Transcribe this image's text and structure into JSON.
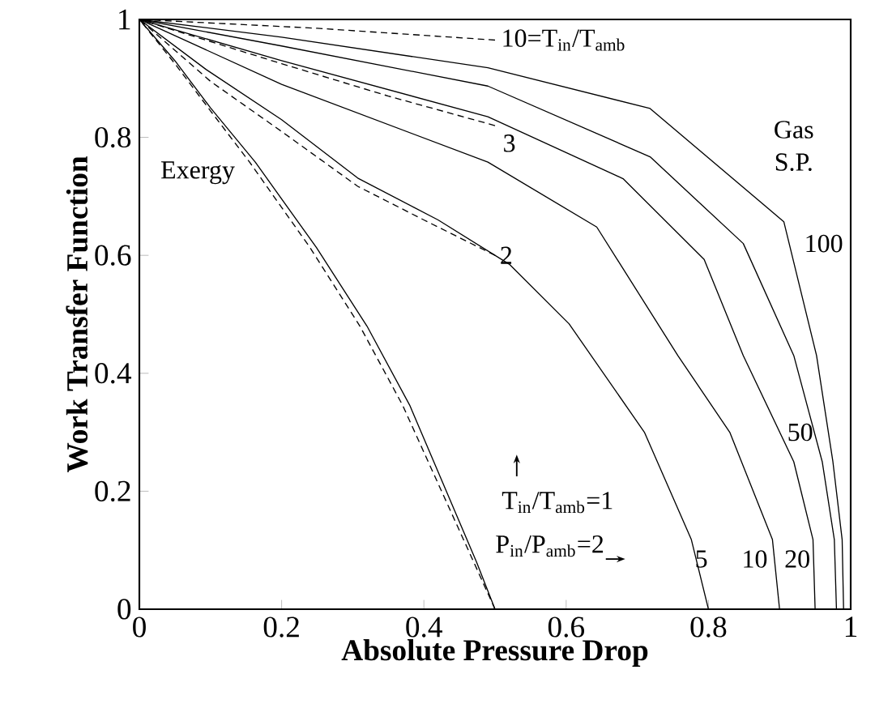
{
  "chart_data": {
    "type": "line",
    "xlabel": "Absolute Pressure Drop",
    "ylabel": "Work Transfer Function",
    "xlim": [
      0,
      1
    ],
    "ylim": [
      0,
      1
    ],
    "xticks": [
      0,
      0.2,
      0.4,
      0.6,
      0.8,
      1
    ],
    "yticks": [
      0,
      0.2,
      0.4,
      0.6,
      0.8,
      1
    ],
    "grid": false,
    "marker": "none",
    "series": [
      {
        "color": "#000000",
        "line_style": "solid",
        "x": [
          0,
          0.05,
          0.1,
          0.163,
          0.249,
          0.32,
          0.38,
          0.474,
          0.5
        ],
        "values": [
          1,
          0.93,
          0.85,
          0.758,
          0.613,
          0.48,
          0.346,
          0.08,
          0
        ]
      },
      {
        "color": "#000000",
        "line_style": "dashed",
        "x": [
          0,
          0.05,
          0.1,
          0.155,
          0.24,
          0.31,
          0.37,
          0.47,
          0.5
        ],
        "values": [
          1,
          0.925,
          0.845,
          0.758,
          0.613,
          0.48,
          0.346,
          0.08,
          0
        ]
      },
      {
        "color": "#000000",
        "line_style": "solid",
        "x": [
          0,
          0.094,
          0.2,
          0.307,
          0.42,
          0.52,
          0.604,
          0.71,
          0.776,
          0.8
        ],
        "values": [
          1,
          0.915,
          0.83,
          0.731,
          0.66,
          0.585,
          0.484,
          0.3,
          0.118,
          0
        ]
      },
      {
        "color": "#000000",
        "line_style": "solid",
        "x": [
          0,
          0.2,
          0.49,
          0.643,
          0.757,
          0.83,
          0.89,
          0.9
        ],
        "values": [
          1,
          0.89,
          0.758,
          0.648,
          0.43,
          0.3,
          0.118,
          0
        ]
      },
      {
        "color": "#000000",
        "line_style": "solid",
        "x": [
          0,
          0.2,
          0.49,
          0.68,
          0.794,
          0.849,
          0.92,
          0.947,
          0.95
        ],
        "values": [
          1,
          0.93,
          0.835,
          0.73,
          0.593,
          0.43,
          0.25,
          0.118,
          0
        ]
      },
      {
        "color": "#000000",
        "line_style": "solid",
        "x": [
          0,
          0.2,
          0.49,
          0.718,
          0.849,
          0.92,
          0.96,
          0.977,
          0.98
        ],
        "values": [
          1,
          0.955,
          0.887,
          0.767,
          0.62,
          0.43,
          0.25,
          0.118,
          0
        ]
      },
      {
        "color": "#000000",
        "line_style": "solid",
        "x": [
          0,
          0.2,
          0.49,
          0.718,
          0.906,
          0.952,
          0.975,
          0.988,
          0.99
        ],
        "values": [
          1,
          0.97,
          0.918,
          0.849,
          0.657,
          0.43,
          0.25,
          0.118,
          0
        ]
      },
      {
        "color": "#000000",
        "line_style": "dashed",
        "x": [
          0,
          0.1,
          0.2,
          0.307,
          0.4,
          0.5
        ],
        "values": [
          1,
          0.895,
          0.81,
          0.717,
          0.66,
          0.6
        ]
      },
      {
        "color": "#000000",
        "line_style": "dashed",
        "x": [
          0,
          0.2,
          0.35,
          0.5
        ],
        "values": [
          1,
          0.925,
          0.87,
          0.82
        ]
      },
      {
        "color": "#000000",
        "line_style": "dashed",
        "x": [
          0,
          0.25,
          0.5
        ],
        "values": [
          1,
          0.985,
          0.965
        ]
      }
    ],
    "annotations": [
      "10=T$_{in}$/T$_{amb}$",
      "3",
      "2",
      "Exergy",
      "Gas",
      "S.P.",
      "100",
      "50",
      "5",
      "10",
      "20",
      "T$_{in}$/T$_{amb}$=1",
      "P$_{in}$/P$_{amb}$=2"
    ]
  }
}
